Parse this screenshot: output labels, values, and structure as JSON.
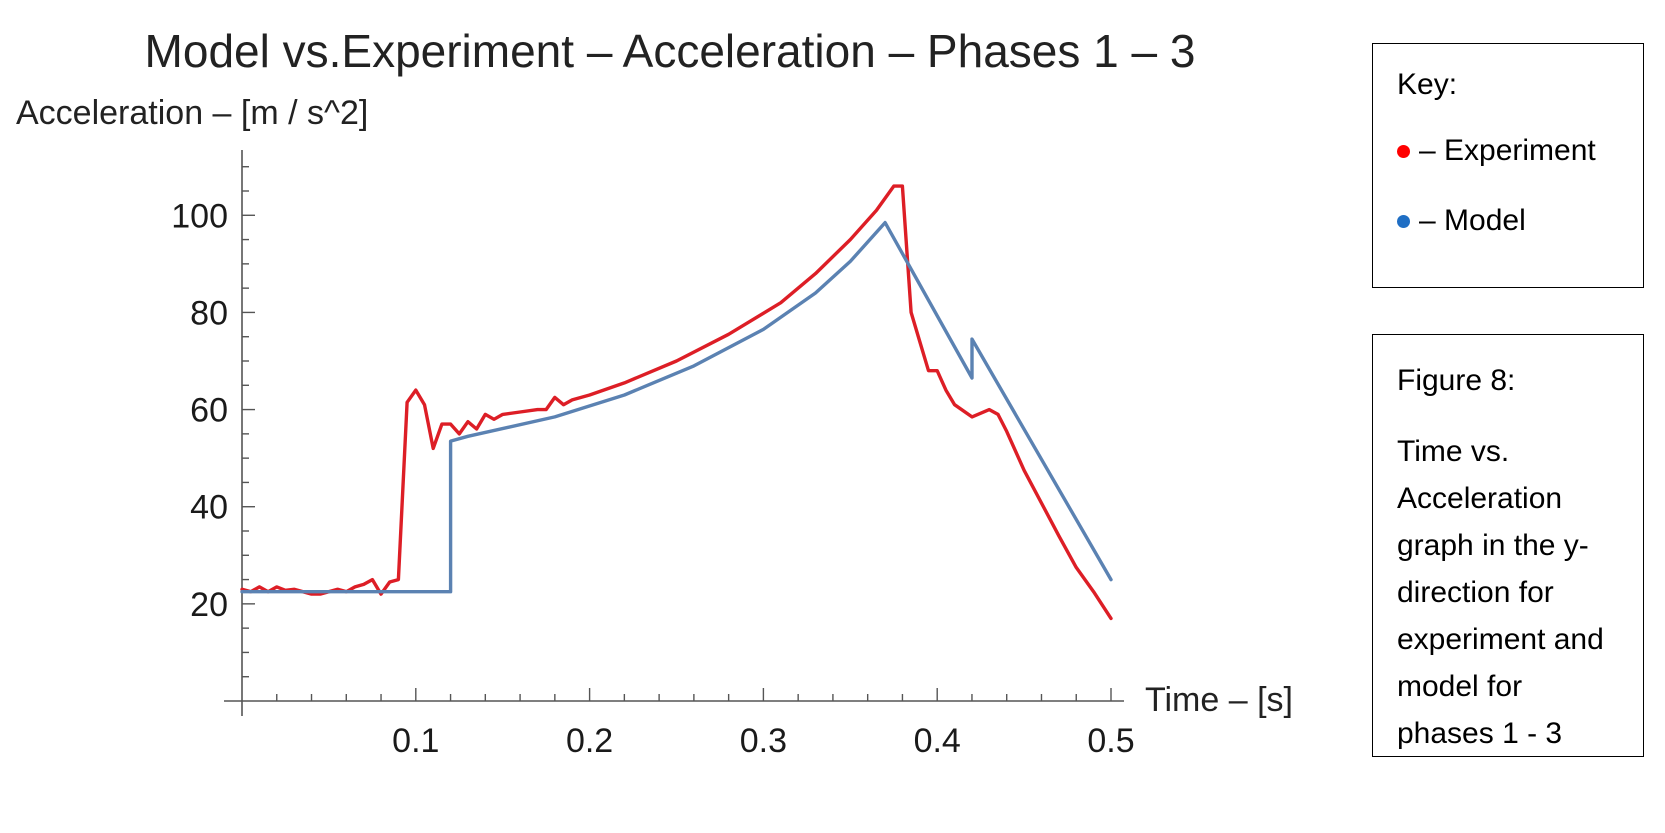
{
  "chart_data": {
    "type": "line",
    "title": "Model vs.Experiment – Acceleration – Phases 1 – 3",
    "ylabel": "Acceleration – [m / s^2]",
    "xlabel": "Time – [s]",
    "xlim": [
      0,
      0.5
    ],
    "ylim": [
      0,
      112
    ],
    "xticks": [
      "0.1",
      "0.2",
      "0.3",
      "0.4",
      "0.5"
    ],
    "yticks": [
      "20",
      "40",
      "60",
      "80",
      "100"
    ],
    "grid": false,
    "series": [
      {
        "name": "Experiment",
        "color": "#dd1e26",
        "x": [
          0,
          0.005,
          0.01,
          0.015,
          0.02,
          0.025,
          0.03,
          0.035,
          0.04,
          0.045,
          0.05,
          0.055,
          0.06,
          0.065,
          0.07,
          0.075,
          0.08,
          0.085,
          0.09,
          0.095,
          0.1,
          0.105,
          0.11,
          0.115,
          0.12,
          0.125,
          0.13,
          0.135,
          0.14,
          0.145,
          0.15,
          0.16,
          0.17,
          0.175,
          0.18,
          0.185,
          0.19,
          0.2,
          0.22,
          0.25,
          0.28,
          0.31,
          0.33,
          0.35,
          0.365,
          0.375,
          0.38,
          0.385,
          0.39,
          0.395,
          0.4,
          0.405,
          0.41,
          0.42,
          0.43,
          0.435,
          0.44,
          0.45,
          0.47,
          0.48,
          0.49,
          0.5
        ],
        "y": [
          23,
          22.5,
          23.5,
          22.5,
          23.5,
          22.8,
          23,
          22.5,
          22,
          22,
          22.5,
          23,
          22.5,
          23.5,
          24,
          25,
          22,
          24.5,
          25,
          61.5,
          64,
          61,
          52,
          57,
          57,
          55,
          57.5,
          56,
          59,
          58,
          59,
          59.5,
          60,
          60,
          62.5,
          61,
          62,
          63,
          65.5,
          70,
          75.5,
          82,
          88,
          95,
          101,
          106,
          106,
          80,
          74,
          68,
          68,
          64,
          61,
          58.5,
          60,
          59,
          55.5,
          47.5,
          34,
          27.5,
          22.5,
          17
        ]
      },
      {
        "name": "Model",
        "color": "#5b82b2",
        "x": [
          0,
          0.12,
          0.12,
          0.13,
          0.18,
          0.22,
          0.26,
          0.3,
          0.33,
          0.35,
          0.37,
          0.42,
          0.42,
          0.5
        ],
        "y": [
          22.5,
          22.5,
          53.5,
          54.5,
          58.5,
          63,
          69,
          76.5,
          84,
          90.5,
          98.5,
          66.5,
          74.5,
          25
        ]
      }
    ]
  },
  "key": {
    "title": "Key:",
    "items": [
      {
        "label": "– Experiment",
        "color": "#ff0000"
      },
      {
        "label": "– Model",
        "color": "#1f6ec4"
      }
    ]
  },
  "caption": {
    "label": "Figure 8:",
    "text": "Time vs. Acceleration graph in the y-direction for experiment and model for phases 1 - 3"
  }
}
